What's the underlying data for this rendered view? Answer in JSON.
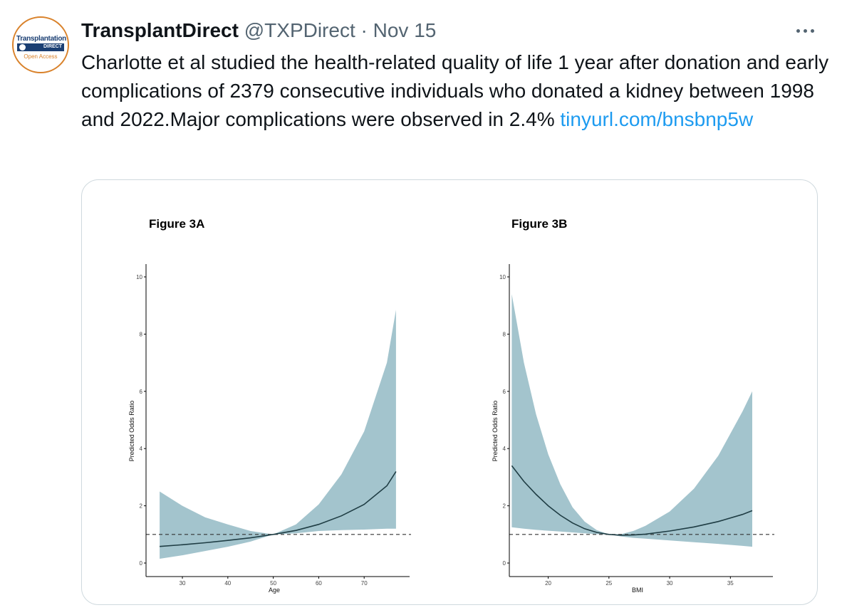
{
  "tweet": {
    "author_name": "TransplantDirect",
    "handle": "@TXPDirect",
    "separator": "·",
    "date": "Nov 15",
    "text": "Charlotte et al studied the health-related quality of life 1 year after donation and early complications of 2379 consecutive individuals who donated a kidney between 1998 and 2022.Major complications were observed in 2.4%",
    "link_text": "tinyurl.com/bnsbnp5w"
  },
  "avatar": {
    "logo_text": "Transplantation",
    "logo_sub": "DIRECT",
    "logo_tagline": "Open Access",
    "colors": {
      "ring": "#d9822b",
      "brand": "#1b3f73"
    }
  },
  "icons": {
    "more": "more-horizontal-icon"
  },
  "colors": {
    "link": "#1d9bf0",
    "muted": "#536471",
    "band": "#a3c4cd",
    "line": "#1f3d44"
  },
  "chart_data": [
    {
      "type": "line",
      "title": "Figure 3A",
      "xlabel": "Age",
      "ylabel": "Predicted Odds Ratio",
      "xticks": [
        30,
        40,
        50,
        60,
        70
      ],
      "yticks": [
        0,
        2,
        4,
        6,
        8,
        10
      ],
      "xlim": [
        22,
        80
      ],
      "ylim": [
        0,
        10
      ],
      "reference_line": 1,
      "series": [
        {
          "role": "estimate",
          "x": [
            25,
            30,
            35,
            40,
            45,
            50,
            55,
            60,
            65,
            70,
            75,
            77
          ],
          "y": [
            0.58,
            0.64,
            0.71,
            0.79,
            0.88,
            1.0,
            1.14,
            1.35,
            1.65,
            2.05,
            2.7,
            3.2
          ]
        },
        {
          "role": "ci_upper",
          "x": [
            25,
            30,
            35,
            40,
            45,
            50,
            55,
            60,
            65,
            70,
            75,
            77
          ],
          "y": [
            2.5,
            2.0,
            1.6,
            1.35,
            1.12,
            1.0,
            1.35,
            2.05,
            3.1,
            4.6,
            7.0,
            8.85
          ]
        },
        {
          "role": "ci_lower",
          "x": [
            25,
            30,
            35,
            40,
            45,
            50,
            55,
            60,
            65,
            70,
            75,
            77
          ],
          "y": [
            0.15,
            0.27,
            0.42,
            0.57,
            0.75,
            1.0,
            1.04,
            1.12,
            1.15,
            1.17,
            1.2,
            1.2
          ]
        }
      ]
    },
    {
      "type": "line",
      "title": "Figure 3B",
      "xlabel": "BMI",
      "ylabel": "Predicted Odds Ratio",
      "xticks": [
        20,
        25,
        30,
        35
      ],
      "yticks": [
        0,
        2,
        4,
        6,
        8,
        10
      ],
      "xlim": [
        16.8,
        38.5
      ],
      "ylim": [
        0,
        10
      ],
      "reference_line": 1,
      "series": [
        {
          "role": "estimate",
          "x": [
            17,
            18,
            19,
            20,
            21,
            22,
            23,
            24,
            25,
            26,
            27,
            28,
            30,
            32,
            34,
            36,
            36.8
          ],
          "y": [
            3.4,
            2.85,
            2.4,
            2.0,
            1.67,
            1.4,
            1.2,
            1.07,
            1.0,
            0.97,
            0.98,
            1.01,
            1.12,
            1.26,
            1.45,
            1.7,
            1.83
          ]
        },
        {
          "role": "ci_upper",
          "x": [
            17,
            18,
            19,
            20,
            21,
            22,
            23,
            24,
            25,
            26,
            27,
            28,
            30,
            32,
            34,
            36,
            36.8
          ],
          "y": [
            9.4,
            7.0,
            5.2,
            3.8,
            2.75,
            1.95,
            1.45,
            1.15,
            1.0,
            1.01,
            1.12,
            1.3,
            1.8,
            2.6,
            3.75,
            5.3,
            6.0
          ]
        },
        {
          "role": "ci_lower",
          "x": [
            17,
            18,
            19,
            20,
            21,
            22,
            23,
            24,
            25,
            26,
            27,
            28,
            30,
            32,
            34,
            36,
            36.8
          ],
          "y": [
            1.25,
            1.2,
            1.16,
            1.13,
            1.1,
            1.07,
            1.04,
            1.01,
            1.0,
            0.93,
            0.88,
            0.85,
            0.79,
            0.73,
            0.67,
            0.6,
            0.57
          ]
        }
      ]
    }
  ]
}
